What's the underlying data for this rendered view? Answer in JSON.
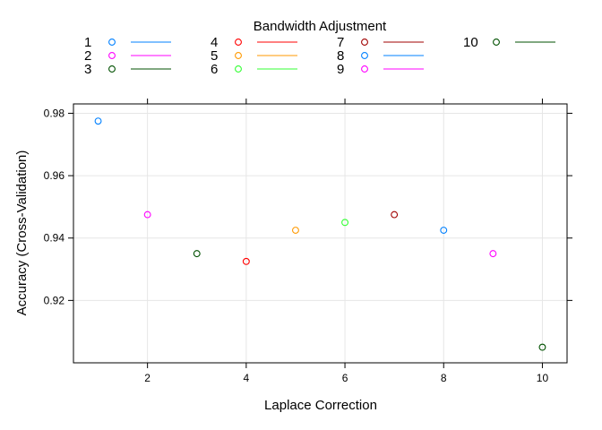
{
  "chart_data": {
    "type": "scatter",
    "title": "",
    "xlabel": "Laplace Correction",
    "ylabel": "Accuracy (Cross-Validation)",
    "xlim": [
      0.5,
      10.5
    ],
    "ylim": [
      0.9,
      0.983
    ],
    "x_ticks": [
      2,
      4,
      6,
      8,
      10
    ],
    "y_ticks": [
      0.92,
      0.94,
      0.96,
      0.98
    ],
    "x_tick_labels": [
      "2",
      "4",
      "6",
      "8",
      "10"
    ],
    "y_tick_labels": [
      "0.92",
      "0.94",
      "0.96",
      "0.98"
    ],
    "grid": true,
    "legend": {
      "title": "Bandwidth Adjustment",
      "placement": "top",
      "columns": 4
    },
    "series": [
      {
        "name": "1",
        "color": "#0080ff",
        "points": [
          {
            "x": 1,
            "y": 0.9775
          }
        ]
      },
      {
        "name": "2",
        "color": "#ff00ff",
        "points": [
          {
            "x": 2,
            "y": 0.9475
          }
        ]
      },
      {
        "name": "3",
        "color": "#005000",
        "points": [
          {
            "x": 3,
            "y": 0.935
          }
        ]
      },
      {
        "name": "4",
        "color": "#ff0000",
        "points": [
          {
            "x": 4,
            "y": 0.9325
          }
        ]
      },
      {
        "name": "5",
        "color": "#ff9900",
        "points": [
          {
            "x": 5,
            "y": 0.9425
          }
        ]
      },
      {
        "name": "6",
        "color": "#33ff33",
        "points": [
          {
            "x": 6,
            "y": 0.945
          }
        ]
      },
      {
        "name": "7",
        "color": "#a00000",
        "points": [
          {
            "x": 7,
            "y": 0.9475
          }
        ]
      },
      {
        "name": "8",
        "color": "#0080ff",
        "points": [
          {
            "x": 8,
            "y": 0.9425
          }
        ]
      },
      {
        "name": "9",
        "color": "#ff00ff",
        "points": [
          {
            "x": 9,
            "y": 0.935
          }
        ]
      },
      {
        "name": "10",
        "color": "#005000",
        "points": [
          {
            "x": 10,
            "y": 0.905
          }
        ]
      }
    ]
  }
}
